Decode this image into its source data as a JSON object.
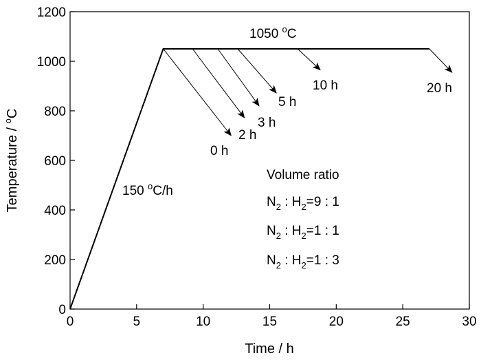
{
  "chart_data": {
    "type": "line",
    "xlabel": "Time / h",
    "ylabel": "Temperature / °C",
    "xlim": [
      0,
      30
    ],
    "ylim": [
      0,
      1200
    ],
    "xticks": [
      0,
      5,
      10,
      15,
      20,
      25,
      30
    ],
    "yticks": [
      0,
      200,
      400,
      600,
      800,
      1000,
      1200
    ],
    "grid": false,
    "legend": "none",
    "line_color": "#000000",
    "series": [
      {
        "x": [
          0,
          7,
          27
        ],
        "y": [
          0,
          1050,
          1050
        ]
      }
    ],
    "annotations": {
      "heating_rate": "150 °C/h",
      "hold_temperature": "1050 °C",
      "dwell_times": [
        "0 h",
        "2 h",
        "3 h",
        "5 h",
        "10 h",
        "20 h"
      ],
      "volume_ratio_title": "Volume ratio",
      "ratios": [
        "N₂ : H₂=9 : 1",
        "N₂ : H₂=1 : 1",
        "N₂ : H₂=1 : 3"
      ]
    },
    "cooling_arrows": [
      {
        "label": "0 h",
        "from": [
          7,
          1050
        ],
        "to": [
          12.1,
          700
        ]
      },
      {
        "label": "2 h",
        "from": [
          9.2,
          1050
        ],
        "to": [
          13.1,
          772
        ]
      },
      {
        "label": "3 h",
        "from": [
          11.1,
          1050
        ],
        "to": [
          14.2,
          820
        ]
      },
      {
        "label": "5 h",
        "from": [
          12.6,
          1050
        ],
        "to": [
          15.5,
          872
        ]
      },
      {
        "label": "10 h",
        "from": [
          17.1,
          1050
        ],
        "to": [
          18.8,
          965
        ]
      },
      {
        "label": "20 h",
        "from": [
          27,
          1050
        ],
        "to": [
          28.7,
          955
        ]
      }
    ]
  }
}
